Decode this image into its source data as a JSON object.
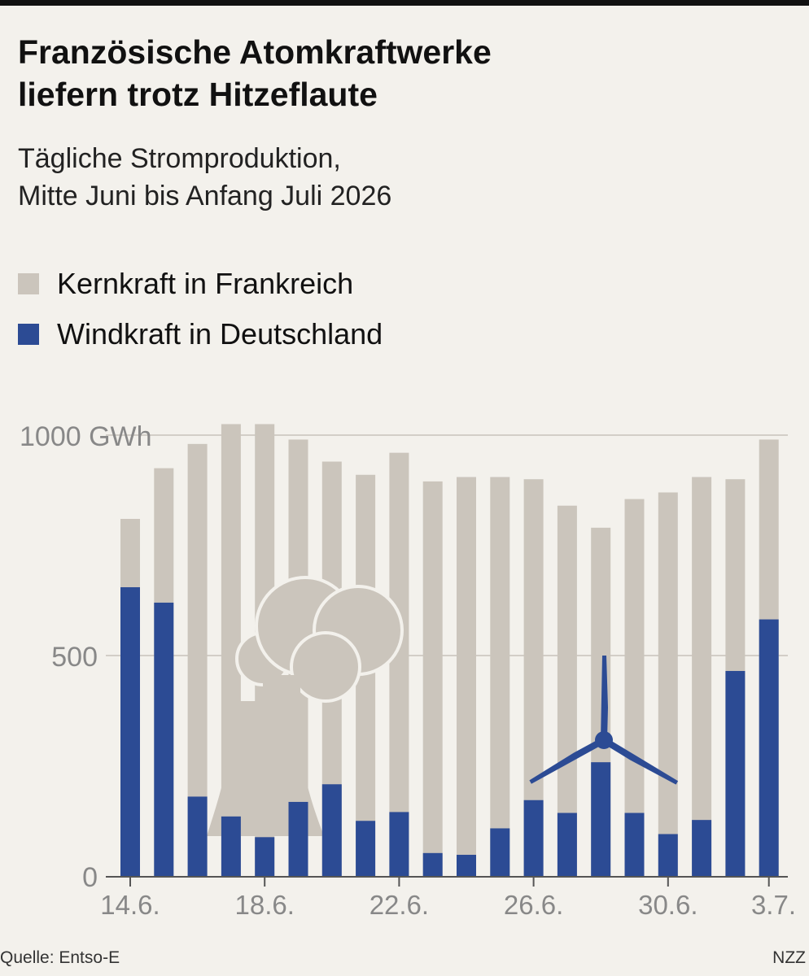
{
  "header": {
    "title_line1": "Französische Atomkraftwerke",
    "title_line2": "liefern trotz Hitzeflaute",
    "subtitle_line1": "Tägliche Stromproduktion,",
    "subtitle_line2": "Mitte Juni bis Anfang Juli 2026"
  },
  "legend": {
    "nuclear_label": "Kernkraft in Frankreich",
    "wind_label": "Windkraft in Deutschland"
  },
  "colors": {
    "nuclear": "#cbc5bc",
    "wind": "#2c4b94",
    "grid": "#d2cec7",
    "axis": "#555555",
    "tick_text": "#888888",
    "background": "#f3f1ec"
  },
  "icons": [
    "cooling-tower-icon",
    "smoke-cloud-icon",
    "wind-turbine-icon"
  ],
  "footer": {
    "source": "Quelle: Entso-E",
    "brand": "NZZ"
  },
  "chart_data": {
    "type": "bar",
    "categories": [
      "14.6.",
      "15.6.",
      "16.6.",
      "17.6.",
      "18.6.",
      "19.6.",
      "20.6.",
      "21.6.",
      "22.6.",
      "23.6.",
      "24.6.",
      "25.6.",
      "26.6.",
      "27.6.",
      "28.6.",
      "29.6.",
      "30.6.",
      "1.7.",
      "2.7.",
      "3.7."
    ],
    "tick_labels": [
      "14.6.",
      "18.6.",
      "22.6.",
      "26.6.",
      "30.6.",
      "3.7."
    ],
    "series": [
      {
        "name": "Kernkraft in Frankreich",
        "values": [
          810,
          925,
          980,
          1025,
          1025,
          990,
          940,
          910,
          960,
          895,
          905,
          905,
          900,
          840,
          790,
          855,
          870,
          905,
          900,
          990
        ]
      },
      {
        "name": "Windkraft in Deutschland",
        "values": [
          655,
          620,
          180,
          135,
          88,
          168,
          208,
          125,
          145,
          52,
          48,
          108,
          172,
          143,
          258,
          143,
          95,
          127,
          465,
          582
        ]
      }
    ],
    "ylim": [
      0,
      1000
    ],
    "yticks": [
      {
        "value": 1000,
        "label": "1000 GWh"
      },
      {
        "value": 500,
        "label": "500"
      },
      {
        "value": 0,
        "label": "0"
      }
    ],
    "grid": true,
    "legend_position": "top-left"
  }
}
